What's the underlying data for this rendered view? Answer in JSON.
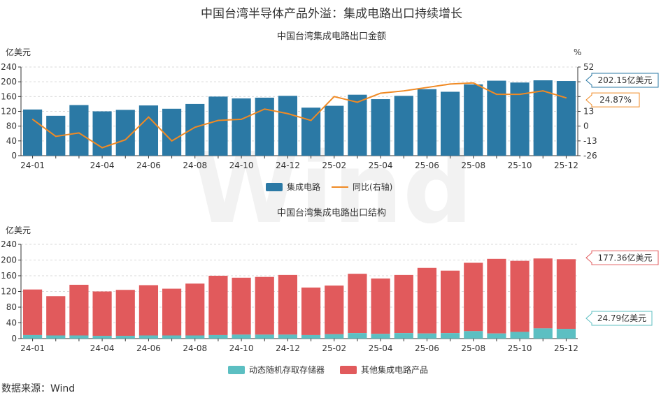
{
  "title": "中国台湾半导体产品外溢：集成电路出口持续增长",
  "source": "数据来源：Wind",
  "watermark": "Wind",
  "colors": {
    "ic_bar": "#2b79a5",
    "yoy_line": "#f08a24",
    "dram": "#5cbfc2",
    "other": "#e15a5c",
    "grid": "#d9d9d9"
  },
  "chart_data": [
    {
      "type": "bar",
      "title": "中国台湾集成电路出口金额",
      "xlabel": "",
      "ylabel": "亿美元",
      "y2label": "%",
      "ylim": [
        0,
        240
      ],
      "yticks": [
        0,
        40,
        80,
        120,
        160,
        200,
        240
      ],
      "y2lim": [
        -26,
        52
      ],
      "y2ticks": [
        -26,
        -13,
        0,
        13,
        26,
        39,
        52
      ],
      "y2tick_labels": [
        "-26",
        "-13",
        "0",
        "13",
        "",
        "",
        "52"
      ],
      "grid": true,
      "legend_position": "bottom",
      "categories": [
        "24-01",
        "24-02",
        "24-03",
        "24-04",
        "24-05",
        "24-06",
        "24-07",
        "24-08",
        "24-09",
        "24-10",
        "24-11",
        "24-12",
        "25-01",
        "25-02",
        "25-03",
        "25-04",
        "25-05",
        "25-06",
        "25-07",
        "25-08",
        "25-09",
        "25-10",
        "25-11",
        "25-12"
      ],
      "xtick_labels": [
        "24-01",
        "",
        "",
        "24-04",
        "",
        "24-06",
        "",
        "24-08",
        "",
        "24-10",
        "",
        "24-12",
        "",
        "25-02",
        "",
        "25-04",
        "",
        "25-06",
        "",
        "25-08",
        "",
        "25-10",
        "",
        "25-12"
      ],
      "series": [
        {
          "name": "集成电路",
          "kind": "bar",
          "axis": "left",
          "values": [
            125,
            108,
            137,
            120,
            124,
            136,
            127,
            140,
            160,
            155,
            157,
            162,
            130,
            135,
            165,
            153,
            162,
            180,
            173,
            193,
            203,
            198,
            204,
            202.15
          ]
        },
        {
          "name": "同比(右轴)",
          "kind": "line",
          "axis": "right",
          "values": [
            6,
            -9,
            -6,
            -19,
            -12,
            8,
            -13,
            -1,
            5,
            6,
            15,
            11,
            5,
            26,
            21,
            29,
            31,
            34,
            37,
            38,
            28,
            28,
            31,
            24.87
          ]
        }
      ],
      "annotations": [
        {
          "series": "集成电路",
          "text": "202.15亿美元"
        },
        {
          "series": "同比(右轴)",
          "text": "24.87%"
        }
      ]
    },
    {
      "type": "bar",
      "stacked": true,
      "title": "中国台湾集成电路出口结构",
      "xlabel": "",
      "ylabel": "亿美元",
      "ylim": [
        0,
        240
      ],
      "yticks": [
        0,
        40,
        80,
        120,
        160,
        200,
        240
      ],
      "grid": true,
      "legend_position": "bottom",
      "categories": [
        "24-01",
        "24-02",
        "24-03",
        "24-04",
        "24-05",
        "24-06",
        "24-07",
        "24-08",
        "24-09",
        "24-10",
        "24-11",
        "24-12",
        "25-01",
        "25-02",
        "25-03",
        "25-04",
        "25-05",
        "25-06",
        "25-07",
        "25-08",
        "25-09",
        "25-10",
        "25-11",
        "25-12"
      ],
      "xtick_labels": [
        "24-01",
        "",
        "",
        "24-04",
        "",
        "24-06",
        "",
        "24-08",
        "",
        "24-10",
        "",
        "24-12",
        "",
        "25-02",
        "",
        "25-04",
        "",
        "25-06",
        "",
        "25-08",
        "",
        "25-10",
        "",
        "25-12"
      ],
      "series": [
        {
          "name": "动态随机存取存储器",
          "values": [
            9,
            8,
            8,
            7,
            7,
            8,
            8,
            8,
            9,
            10,
            10,
            10,
            9,
            11,
            14,
            12,
            14,
            13,
            14,
            19,
            13,
            17,
            26,
            24.79
          ]
        },
        {
          "name": "其他集成电路产品",
          "values": [
            116,
            100,
            129,
            113,
            117,
            128,
            119,
            132,
            151,
            145,
            147,
            152,
            121,
            124,
            151,
            141,
            148,
            167,
            159,
            174,
            190,
            181,
            178,
            177.36
          ]
        }
      ],
      "annotations": [
        {
          "series": "其他集成电路产品",
          "text": "177.36亿美元"
        },
        {
          "series": "动态随机存取存储器",
          "text": "24.79亿美元"
        }
      ]
    }
  ]
}
